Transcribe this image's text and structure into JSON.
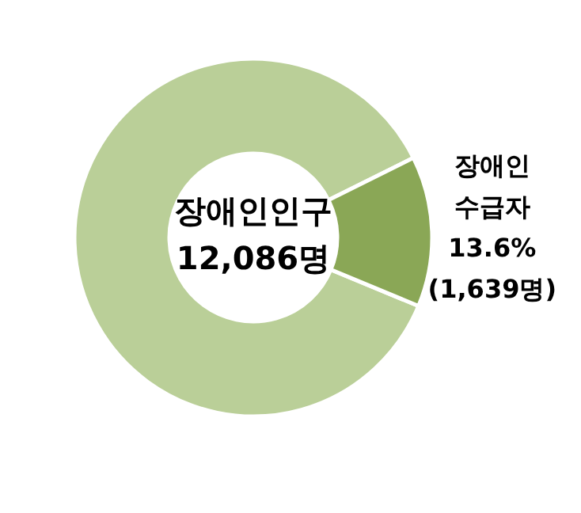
{
  "chart_data": {
    "type": "donut",
    "categories": [
      null,
      "장애인 수급자"
    ],
    "values": [
      86.4,
      13.6
    ],
    "colors": [
      "#bacf98",
      "#8aa756"
    ],
    "value_labels": [
      null,
      "13.6% (1,639명)"
    ],
    "annotations": [
      "장애인인구 12,086명"
    ]
  }
}
